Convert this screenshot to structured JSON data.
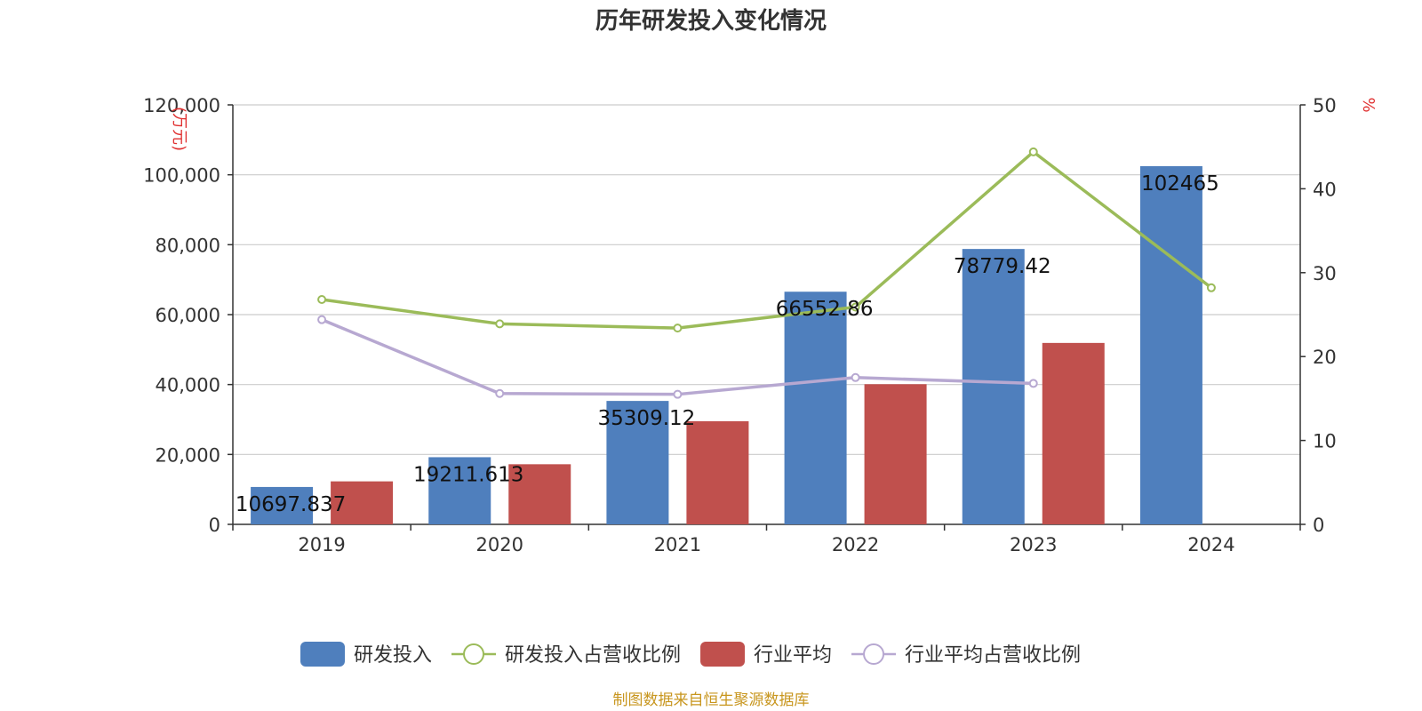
{
  "chart_data": {
    "type": "bar",
    "title": "历年研发投入变化情况",
    "categories": [
      "2019",
      "2020",
      "2021",
      "2022",
      "2023",
      "2024"
    ],
    "y_left": {
      "unit_label": "(万元)",
      "ylim": [
        0,
        120000
      ],
      "ticks": [
        "0",
        "20,000",
        "40,000",
        "60,000",
        "80,000",
        "100,000",
        "120,000"
      ]
    },
    "y_right": {
      "unit_label": "%",
      "ylim": [
        0,
        50
      ],
      "ticks": [
        "0",
        "10",
        "20",
        "30",
        "40",
        "50"
      ]
    },
    "series": [
      {
        "name": "研发投入",
        "kind": "bar",
        "axis": "left",
        "color": "#4f7fbd",
        "values": [
          10697.837,
          19211.613,
          35309.12,
          66552.86,
          78779.42,
          102465
        ],
        "labels": [
          "10697.837",
          "19211.613",
          "35309.12",
          "66552.86",
          "78779.42",
          "102465"
        ]
      },
      {
        "name": "研发投入占营收比例",
        "kind": "line",
        "axis": "right",
        "color": "#9bbb59",
        "values": [
          26.8,
          23.9,
          23.4,
          25.9,
          44.4,
          28.2
        ]
      },
      {
        "name": "行业平均",
        "kind": "bar",
        "axis": "left",
        "color": "#c0504d",
        "values": [
          12300,
          17200,
          29500,
          40100,
          51900,
          null
        ]
      },
      {
        "name": "行业平均占营收比例",
        "kind": "line",
        "axis": "right",
        "color": "#b7a8d1",
        "values": [
          24.4,
          15.6,
          15.5,
          17.5,
          16.8,
          null
        ]
      }
    ],
    "grid": true,
    "legend_position": "bottom"
  },
  "source_text": "制图数据来自恒生聚源数据库"
}
